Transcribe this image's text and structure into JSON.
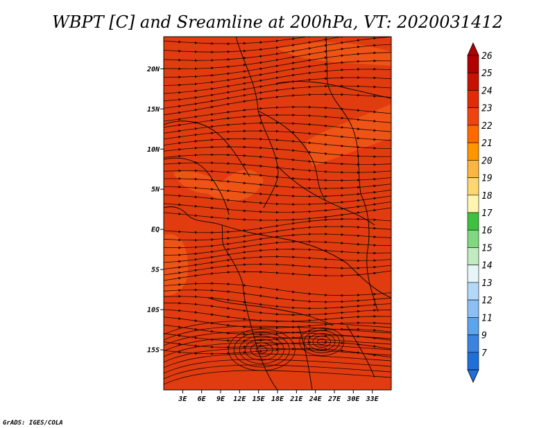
{
  "title": "WBPT [C] and Sreamline at 200hPa, VT: 2020031412",
  "credit": "GrADS: IGES/COLA",
  "map": {
    "lon_range": [
      0,
      36
    ],
    "lat_range": [
      -20,
      24
    ],
    "lat_ticks": [
      {
        "value": 20,
        "label": "20N"
      },
      {
        "value": 15,
        "label": "15N"
      },
      {
        "value": 10,
        "label": "10N"
      },
      {
        "value": 5,
        "label": "5N"
      },
      {
        "value": 0,
        "label": "EQ"
      },
      {
        "value": -5,
        "label": "5S"
      },
      {
        "value": -10,
        "label": "10S"
      },
      {
        "value": -15,
        "label": "15S"
      }
    ],
    "lon_ticks": [
      {
        "value": 3,
        "label": "3E"
      },
      {
        "value": 6,
        "label": "6E"
      },
      {
        "value": 9,
        "label": "9E"
      },
      {
        "value": 12,
        "label": "12E"
      },
      {
        "value": 15,
        "label": "15E"
      },
      {
        "value": 18,
        "label": "18E"
      },
      {
        "value": 21,
        "label": "21E"
      },
      {
        "value": 24,
        "label": "24E"
      },
      {
        "value": 27,
        "label": "27E"
      },
      {
        "value": 30,
        "label": "30E"
      },
      {
        "value": 33,
        "label": "33E"
      }
    ],
    "field_colors": {
      "base": "#e03c10",
      "warm": "#f05a18"
    }
  },
  "colorbar": {
    "levels": [
      {
        "label": "26",
        "color": "#b00000"
      },
      {
        "label": "25",
        "color": "#c81200"
      },
      {
        "label": "24",
        "color": "#e02a08"
      },
      {
        "label": "23",
        "color": "#f04410"
      },
      {
        "label": "22",
        "color": "#ff6a00"
      },
      {
        "label": "21",
        "color": "#ff9500"
      },
      {
        "label": "20",
        "color": "#fcb540"
      },
      {
        "label": "19",
        "color": "#fdd870"
      },
      {
        "label": "18",
        "color": "#fff5b0"
      },
      {
        "label": "17",
        "color": "#40c040"
      },
      {
        "label": "16",
        "color": "#80d880"
      },
      {
        "label": "15",
        "color": "#c0ecc0"
      },
      {
        "label": "14",
        "color": "#e6f6f8"
      },
      {
        "label": "13",
        "color": "#b4d8f8"
      },
      {
        "label": "12",
        "color": "#8cc0f4"
      },
      {
        "label": "11",
        "color": "#5ca4ec"
      },
      {
        "label": "9",
        "color": "#3a84e0"
      },
      {
        "label": "7",
        "color": "#1f6fd8"
      }
    ]
  }
}
